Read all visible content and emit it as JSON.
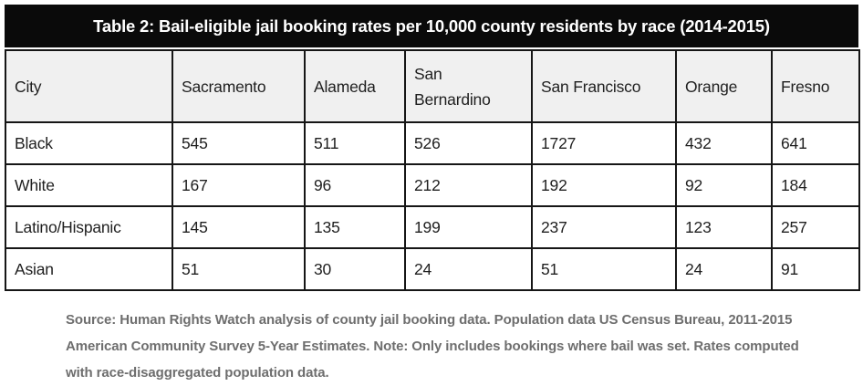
{
  "colors": {
    "title_bg": "#0a0a0a",
    "title_text": "#ffffff",
    "header_bg": "#f0f0f0",
    "border": "#161616",
    "body_text": "#1f1f1f",
    "note_text": "#6e6e6e"
  },
  "chart_data": {
    "type": "table",
    "title": "Table 2: Bail-eligible jail booking rates per 10,000 county residents by race (2014-2015)",
    "columns": [
      "City",
      "Sacramento",
      "Alameda",
      "San Bernardino",
      "San Francisco",
      "Orange",
      "Fresno"
    ],
    "rows": [
      {
        "label": "Black",
        "values": [
          "545",
          "511",
          "526",
          "1727",
          "432",
          "641"
        ]
      },
      {
        "label": "White",
        "values": [
          "167",
          "96",
          "212",
          "192",
          "92",
          "184"
        ]
      },
      {
        "label": "Latino/Hispanic",
        "values": [
          "145",
          "135",
          "199",
          "237",
          "123",
          "257"
        ]
      },
      {
        "label": "Asian",
        "values": [
          "51",
          "30",
          "24",
          "51",
          "24",
          "91"
        ]
      }
    ],
    "source_note": "Source: Human Rights Watch analysis of county jail booking data. Population data US Census Bureau, 2011-2015 American Community Survey 5-Year Estimates. Note: Only includes bookings where bail was set. Rates computed with race-disaggregated population data."
  }
}
